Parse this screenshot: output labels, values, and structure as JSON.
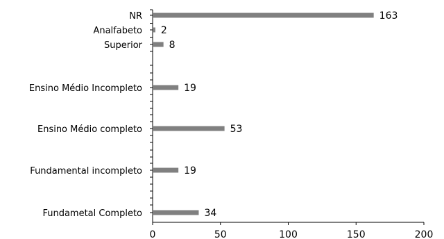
{
  "chart_data": {
    "type": "bar",
    "orientation": "horizontal",
    "categories": [
      "NR",
      "Analfabeto",
      "Superior",
      "Ensino Médio Incompleto",
      "Ensino Médio completo",
      "Fundamental incompleto",
      "Fundametal Completo"
    ],
    "values": [
      163,
      2,
      8,
      19,
      53,
      19,
      34
    ],
    "xlim": [
      0,
      200
    ],
    "xticks": [
      0,
      50,
      100,
      150,
      200
    ],
    "bar_color": "#808080",
    "grid": false,
    "legend": "none"
  }
}
